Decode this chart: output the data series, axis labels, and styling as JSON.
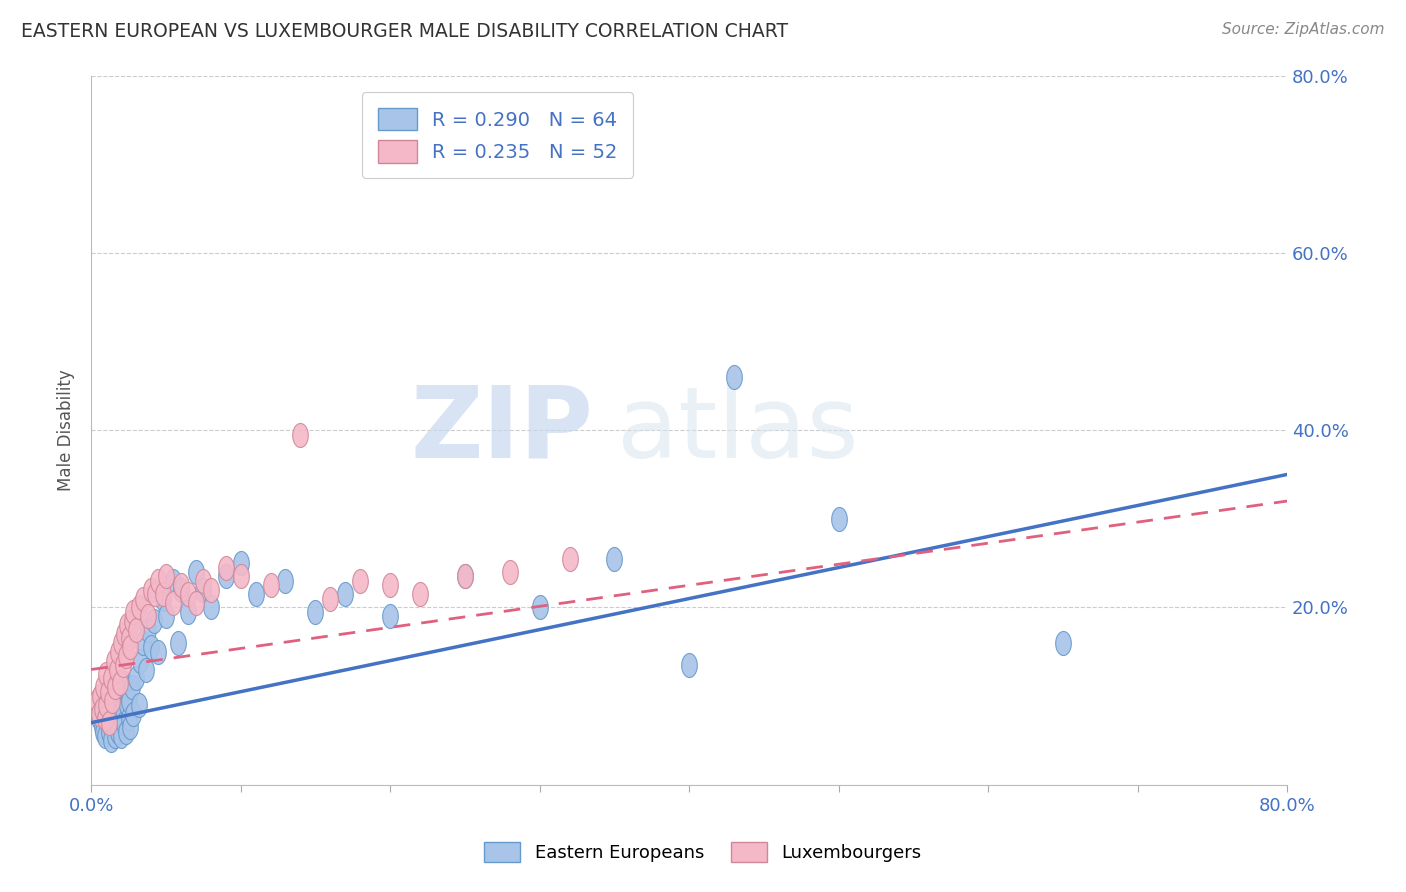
{
  "title": "EASTERN EUROPEAN VS LUXEMBOURGER MALE DISABILITY CORRELATION CHART",
  "source": "Source: ZipAtlas.com",
  "ylabel": "Male Disability",
  "xlim": [
    0.0,
    0.8
  ],
  "ylim": [
    0.0,
    0.8
  ],
  "blue_color": "#A8C4E8",
  "blue_edge_color": "#6699CC",
  "pink_color": "#F4B8C8",
  "pink_edge_color": "#D08898",
  "blue_line_color": "#4472C4",
  "pink_line_color": "#E06080",
  "grid_color": "#CCCCCC",
  "legend_text_color": "#4472C4",
  "tick_label_color": "#4472C4",
  "blue_x": [
    0.005,
    0.007,
    0.008,
    0.009,
    0.01,
    0.01,
    0.011,
    0.012,
    0.012,
    0.013,
    0.013,
    0.014,
    0.015,
    0.015,
    0.016,
    0.016,
    0.017,
    0.018,
    0.018,
    0.019,
    0.02,
    0.02,
    0.021,
    0.022,
    0.022,
    0.023,
    0.024,
    0.025,
    0.025,
    0.026,
    0.027,
    0.028,
    0.03,
    0.032,
    0.033,
    0.035,
    0.037,
    0.038,
    0.04,
    0.042,
    0.045,
    0.048,
    0.05,
    0.055,
    0.058,
    0.06,
    0.065,
    0.07,
    0.075,
    0.08,
    0.09,
    0.1,
    0.11,
    0.13,
    0.15,
    0.17,
    0.2,
    0.25,
    0.3,
    0.35,
    0.4,
    0.43,
    0.5,
    0.65
  ],
  "blue_y": [
    0.075,
    0.065,
    0.06,
    0.055,
    0.095,
    0.08,
    0.07,
    0.085,
    0.06,
    0.1,
    0.05,
    0.075,
    0.09,
    0.065,
    0.11,
    0.055,
    0.07,
    0.095,
    0.06,
    0.08,
    0.105,
    0.055,
    0.085,
    0.07,
    0.115,
    0.06,
    0.09,
    0.075,
    0.095,
    0.065,
    0.11,
    0.08,
    0.12,
    0.09,
    0.14,
    0.16,
    0.13,
    0.175,
    0.155,
    0.185,
    0.15,
    0.21,
    0.19,
    0.23,
    0.16,
    0.22,
    0.195,
    0.24,
    0.22,
    0.2,
    0.235,
    0.25,
    0.215,
    0.23,
    0.195,
    0.215,
    0.19,
    0.235,
    0.2,
    0.255,
    0.135,
    0.46,
    0.3,
    0.16
  ],
  "pink_x": [
    0.004,
    0.005,
    0.006,
    0.007,
    0.008,
    0.009,
    0.01,
    0.01,
    0.011,
    0.012,
    0.013,
    0.014,
    0.015,
    0.016,
    0.017,
    0.018,
    0.019,
    0.02,
    0.021,
    0.022,
    0.023,
    0.024,
    0.025,
    0.026,
    0.027,
    0.028,
    0.03,
    0.032,
    0.035,
    0.038,
    0.04,
    0.043,
    0.045,
    0.048,
    0.05,
    0.055,
    0.06,
    0.065,
    0.07,
    0.075,
    0.08,
    0.09,
    0.1,
    0.12,
    0.14,
    0.16,
    0.18,
    0.2,
    0.22,
    0.25,
    0.28,
    0.32
  ],
  "pink_y": [
    0.095,
    0.08,
    0.1,
    0.085,
    0.11,
    0.075,
    0.125,
    0.09,
    0.105,
    0.07,
    0.12,
    0.095,
    0.14,
    0.11,
    0.13,
    0.15,
    0.115,
    0.16,
    0.135,
    0.17,
    0.145,
    0.18,
    0.165,
    0.155,
    0.185,
    0.195,
    0.175,
    0.2,
    0.21,
    0.19,
    0.22,
    0.215,
    0.23,
    0.215,
    0.235,
    0.205,
    0.225,
    0.215,
    0.205,
    0.23,
    0.22,
    0.245,
    0.235,
    0.225,
    0.395,
    0.21,
    0.23,
    0.225,
    0.215,
    0.235,
    0.24,
    0.255
  ],
  "blue_trend_x": [
    0.0,
    0.8
  ],
  "blue_trend_y": [
    0.07,
    0.35
  ],
  "pink_trend_x": [
    0.0,
    0.8
  ],
  "pink_trend_y": [
    0.13,
    0.32
  ]
}
